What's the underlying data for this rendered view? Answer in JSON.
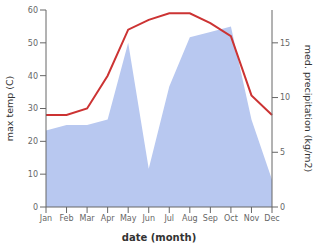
{
  "chart_data": {
    "type": "line",
    "categories": [
      "Jan",
      "Feb",
      "Mar",
      "Apr",
      "May",
      "Jun",
      "Jul",
      "Aug",
      "Sep",
      "Oct",
      "Nov",
      "Dec"
    ],
    "series": [
      {
        "type": "area",
        "color": "#b8c8f0",
        "axis": "y2",
        "values": [
          7.0,
          7.5,
          7.5,
          8.0,
          15.0,
          3.5,
          11.0,
          15.5,
          16.0,
          16.5,
          8.0,
          2.5
        ]
      },
      {
        "type": "line",
        "color": "#cc3333",
        "axis": "y",
        "values": [
          28,
          28,
          30,
          40,
          54,
          57,
          59,
          59,
          56,
          52,
          34,
          28
        ]
      }
    ],
    "xlabel": "date (month)",
    "ylabel": "max temp (C)",
    "y2label": "med. precipitation (kg/m2)",
    "ylim": [
      0,
      60
    ],
    "yticks": [
      0,
      10,
      20,
      30,
      40,
      50,
      60
    ],
    "y2lim": [
      0,
      18
    ],
    "y2ticks": [
      0,
      5,
      10,
      15
    ],
    "grid": false
  }
}
